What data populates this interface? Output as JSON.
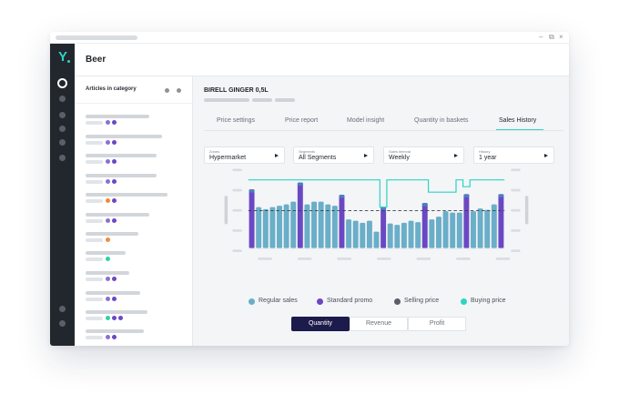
{
  "app": {
    "title": "Beer"
  },
  "window_controls": {
    "minimize": "–",
    "restore": "⧉",
    "close": "×"
  },
  "rail": {
    "logo": "Y",
    "accent": "#2ed3c5"
  },
  "panel": {
    "title": "Articles in category"
  },
  "product": {
    "name": "BIRELL GINGER 0,5L"
  },
  "tabs": [
    {
      "label": "Price settings"
    },
    {
      "label": "Price report"
    },
    {
      "label": "Model insight"
    },
    {
      "label": "Quantity in baskets"
    },
    {
      "label": "Sales History"
    }
  ],
  "filters": [
    {
      "caption": "Zones",
      "value": "Hypermarket"
    },
    {
      "caption": "Segments",
      "value": "All Segments"
    },
    {
      "caption": "Sales interval",
      "value": "Weekly"
    },
    {
      "caption": "History",
      "value": "1 year"
    }
  ],
  "legend": [
    {
      "label": "Regular sales",
      "color": "#6aaec8"
    },
    {
      "label": "Standard promo",
      "color": "#6b48c3"
    },
    {
      "label": "Selling price",
      "color": "#5b5e64"
    },
    {
      "label": "Buying price",
      "color": "#2ed3c5"
    }
  ],
  "toggle": [
    {
      "label": "Quantity",
      "active": true
    },
    {
      "label": "Revenue",
      "active": false
    },
    {
      "label": "Profit",
      "active": false
    }
  ],
  "chart_data": {
    "type": "bar",
    "title": "",
    "xlabel": "",
    "ylabel": "",
    "ylim": [
      0,
      100
    ],
    "series": [
      {
        "name": "Regular sales",
        "values": [
          0,
          60,
          57,
          60,
          62,
          64,
          68,
          0,
          64,
          68,
          68,
          64,
          62,
          0,
          42,
          40,
          37,
          40,
          24,
          0,
          36,
          34,
          37,
          40,
          38,
          0,
          42,
          46,
          54,
          52,
          52,
          0,
          54,
          58,
          56,
          64,
          0
        ],
        "color": "#6aaec8"
      },
      {
        "name": "Standard promo",
        "values": [
          86,
          0,
          0,
          0,
          0,
          0,
          0,
          96,
          0,
          0,
          0,
          0,
          0,
          78,
          0,
          0,
          0,
          0,
          0,
          60,
          0,
          0,
          0,
          0,
          0,
          66,
          0,
          0,
          0,
          0,
          0,
          79,
          0,
          0,
          0,
          0,
          79
        ],
        "color": "#6b48c3"
      }
    ],
    "selling_price": [
      55,
      55,
      55,
      55,
      55,
      55,
      55,
      55,
      55,
      55,
      55,
      55,
      55,
      55,
      55,
      55,
      55,
      55,
      55,
      55,
      55,
      55,
      55,
      55,
      55,
      55,
      55,
      55,
      55,
      55,
      55,
      55,
      55,
      55,
      55,
      55,
      55
    ],
    "buying_price": [
      100,
      100,
      100,
      100,
      100,
      100,
      100,
      100,
      100,
      100,
      100,
      100,
      100,
      100,
      100,
      100,
      100,
      100,
      100,
      60,
      100,
      100,
      100,
      100,
      100,
      100,
      82,
      82,
      82,
      82,
      100,
      90,
      100,
      100,
      100,
      100,
      100
    ],
    "colors": {
      "selling": "#3c4047",
      "buying": "#2ed3c5"
    }
  }
}
